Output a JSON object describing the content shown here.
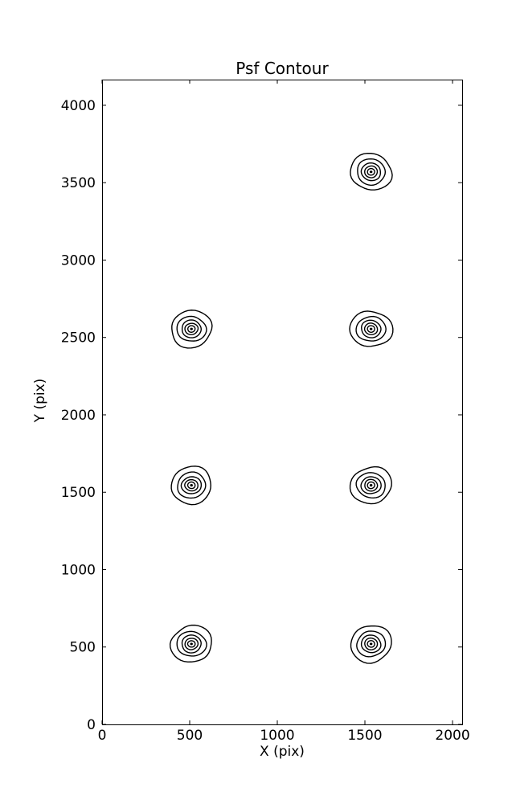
{
  "figure": {
    "background": "#ffffff",
    "line_color": "#000000",
    "text_color": "#000000"
  },
  "chart_data": {
    "type": "contour",
    "title": "Psf Contour",
    "xlabel": "X (pix)",
    "ylabel": "Y (pix)",
    "xlim": [
      0,
      2055
    ],
    "ylim": [
      0,
      4166
    ],
    "xticks": [
      0,
      500,
      1000,
      1500,
      2000
    ],
    "yticks": [
      0,
      500,
      1000,
      1500,
      2000,
      2500,
      3000,
      3500,
      4000
    ],
    "grid": false,
    "legend": "none",
    "tick_direction": "in",
    "ticks_on_all_sides": true,
    "contour_centers": [
      {
        "x": 1535,
        "y": 3570
      },
      {
        "x": 510,
        "y": 2555
      },
      {
        "x": 1535,
        "y": 2555
      },
      {
        "x": 510,
        "y": 1545
      },
      {
        "x": 1535,
        "y": 1545
      },
      {
        "x": 510,
        "y": 520
      },
      {
        "x": 1535,
        "y": 520
      }
    ],
    "ring_radii": [
      118,
      82,
      56,
      37,
      21
    ],
    "center_dot_radius": 8
  }
}
